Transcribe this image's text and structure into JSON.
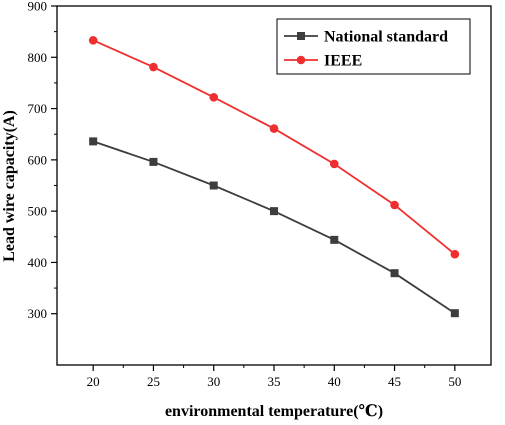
{
  "chart_data": {
    "type": "line",
    "x": [
      20,
      25,
      30,
      35,
      40,
      45,
      50
    ],
    "xlabel": "environmental temperature(℃)",
    "ylabel": "Lead wire capacity(A)",
    "xlim": [
      17,
      53
    ],
    "ylim": [
      200,
      900
    ],
    "xticks": [
      20,
      25,
      30,
      35,
      40,
      45,
      50
    ],
    "yticks": [
      300,
      400,
      500,
      600,
      700,
      800,
      900
    ],
    "grid": false,
    "legend_position": "top-right",
    "series": [
      {
        "name": "National standard",
        "color": "#3d3d3d",
        "marker": "square",
        "values": [
          636,
          596,
          550,
          500,
          444,
          379,
          301
        ]
      },
      {
        "name": "IEEE",
        "color": "#ef2f2f",
        "marker": "circle",
        "values": [
          833,
          781,
          722,
          661,
          592,
          512,
          416
        ]
      }
    ]
  }
}
